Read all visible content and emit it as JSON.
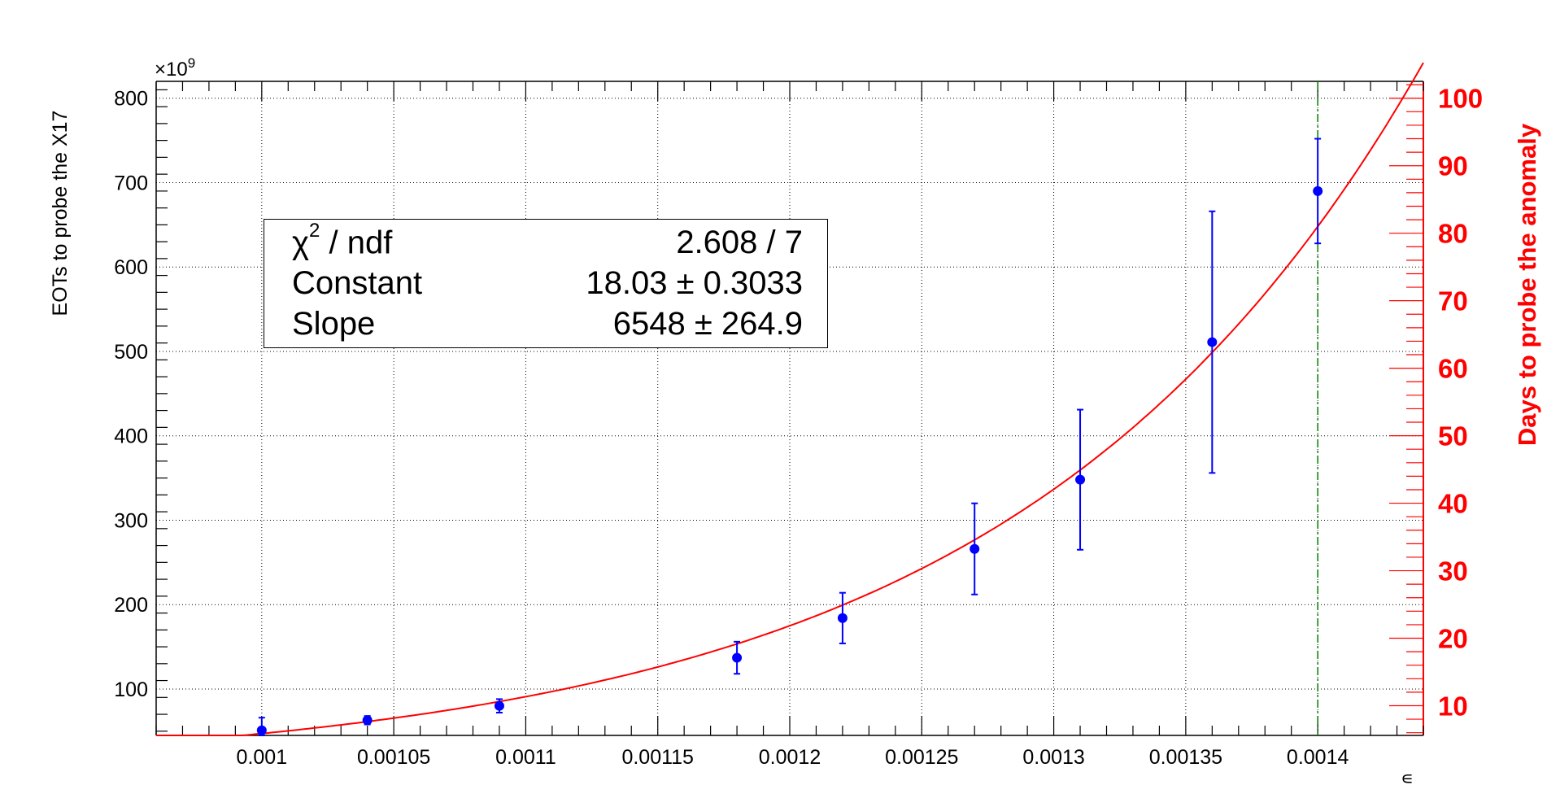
{
  "chart_data": {
    "type": "scatter",
    "x_label": "∊",
    "y_label": "EOTs to probe the X17",
    "y_multiplier": "×10",
    "y_multiplier_exp": "9",
    "y2_label": "Days to probe the anomaly",
    "xlim": [
      0.00096,
      0.00144
    ],
    "ylim": [
      45,
      820
    ],
    "y2lim": [
      5.6,
      102.5
    ],
    "x_ticks": [
      {
        "v": 0.001,
        "label": "0.001"
      },
      {
        "v": 0.00105,
        "label": "0.00105"
      },
      {
        "v": 0.0011,
        "label": "0.0011"
      },
      {
        "v": 0.00115,
        "label": "0.00115"
      },
      {
        "v": 0.0012,
        "label": "0.0012"
      },
      {
        "v": 0.00125,
        "label": "0.00125"
      },
      {
        "v": 0.0013,
        "label": "0.0013"
      },
      {
        "v": 0.00135,
        "label": "0.00135"
      },
      {
        "v": 0.0014,
        "label": "0.0014"
      }
    ],
    "y_ticks": [
      {
        "v": 100,
        "label": "100"
      },
      {
        "v": 200,
        "label": "200"
      },
      {
        "v": 300,
        "label": "300"
      },
      {
        "v": 400,
        "label": "400"
      },
      {
        "v": 500,
        "label": "500"
      },
      {
        "v": 600,
        "label": "600"
      },
      {
        "v": 700,
        "label": "700"
      },
      {
        "v": 800,
        "label": "800"
      }
    ],
    "y2_ticks": [
      {
        "v": 10,
        "label": "10"
      },
      {
        "v": 20,
        "label": "20"
      },
      {
        "v": 30,
        "label": "30"
      },
      {
        "v": 40,
        "label": "40"
      },
      {
        "v": 50,
        "label": "50"
      },
      {
        "v": 60,
        "label": "60"
      },
      {
        "v": 70,
        "label": "70"
      },
      {
        "v": 80,
        "label": "80"
      },
      {
        "v": 90,
        "label": "90"
      },
      {
        "v": 100,
        "label": "100"
      }
    ],
    "grid": true,
    "points": [
      {
        "x": 0.001,
        "y": 51,
        "err": 15
      },
      {
        "x": 0.00104,
        "y": 63,
        "err": 5
      },
      {
        "x": 0.00109,
        "y": 80,
        "err": 8
      },
      {
        "x": 0.00118,
        "y": 137,
        "err": 19
      },
      {
        "x": 0.00122,
        "y": 184,
        "err": 30
      },
      {
        "x": 0.00127,
        "y": 266,
        "err": 54
      },
      {
        "x": 0.00131,
        "y": 348,
        "err": 83
      },
      {
        "x": 0.00136,
        "y": 511,
        "err": 155
      },
      {
        "x": 0.0014,
        "y": 690,
        "err": 62
      }
    ],
    "fit": {
      "function": "exponential",
      "constant": 18.03,
      "slope": 6548
    },
    "vline_x": 0.0014,
    "colors": {
      "points": "#0000ff",
      "fit": "#ff0000",
      "right_axis": "#ff0000",
      "vline": "#008000"
    },
    "stats": {
      "chi_label": "χ",
      "chi_sup": "2",
      "chi_rest": " / ndf",
      "chi_value": "2.608 / 7",
      "constant_label": "Constant",
      "constant_value": "18.03 ± 0.3033",
      "slope_label": "Slope",
      "slope_value": "6548 ± 264.9"
    }
  }
}
